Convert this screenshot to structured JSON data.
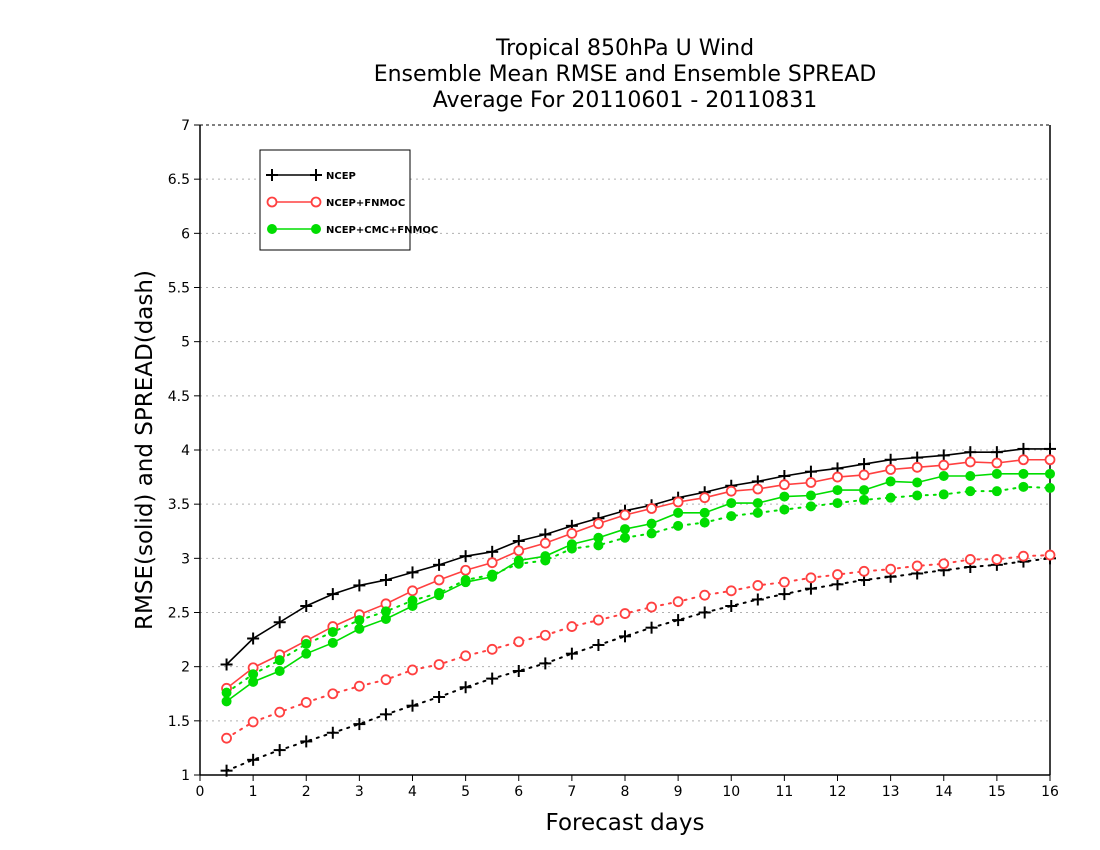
{
  "chart_data": {
    "type": "line",
    "title": [
      "Tropical 850hPa U Wind",
      "Ensemble Mean RMSE and Ensemble SPREAD",
      "Average For 20110601 - 20110831"
    ],
    "xlabel": "Forecast days",
    "ylabel": "RMSE(solid) and SPREAD(dash)",
    "xlim": [
      0,
      16
    ],
    "ylim": [
      1,
      7
    ],
    "xticks": [
      "0",
      "1",
      "2",
      "3",
      "4",
      "5",
      "6",
      "7",
      "8",
      "9",
      "10",
      "11",
      "12",
      "13",
      "14",
      "15",
      "16"
    ],
    "yticks": [
      "1",
      "1.5",
      "2",
      "2.5",
      "3",
      "3.5",
      "4",
      "4.5",
      "5",
      "5.5",
      "6",
      "6.5",
      "7"
    ],
    "grid": "horizontal dotted",
    "legend_position": "top-left",
    "x": [
      0.5,
      1,
      1.5,
      2,
      2.5,
      3,
      3.5,
      4,
      4.5,
      5,
      5.5,
      6,
      6.5,
      7,
      7.5,
      8,
      8.5,
      9,
      9.5,
      10,
      10.5,
      11,
      11.5,
      12,
      12.5,
      13,
      13.5,
      14,
      14.5,
      15,
      15.5,
      16
    ],
    "series": [
      {
        "name": "NCEP",
        "color": "#000000",
        "marker": "plus",
        "rmse": [
          2.02,
          2.26,
          2.41,
          2.56,
          2.67,
          2.75,
          2.8,
          2.87,
          2.94,
          3.02,
          3.06,
          3.16,
          3.22,
          3.3,
          3.37,
          3.44,
          3.49,
          3.56,
          3.61,
          3.67,
          3.71,
          3.76,
          3.8,
          3.83,
          3.87,
          3.91,
          3.93,
          3.95,
          3.98,
          3.98,
          4.01,
          4.01
        ],
        "spread": [
          1.04,
          1.14,
          1.23,
          1.31,
          1.39,
          1.47,
          1.56,
          1.64,
          1.72,
          1.81,
          1.89,
          1.96,
          2.03,
          2.12,
          2.2,
          2.28,
          2.36,
          2.43,
          2.5,
          2.56,
          2.62,
          2.67,
          2.72,
          2.76,
          2.8,
          2.83,
          2.86,
          2.89,
          2.92,
          2.94,
          2.97,
          3.0
        ]
      },
      {
        "name": "NCEP+FNMOC",
        "color": "#ff4040",
        "marker": "open-circle",
        "rmse": [
          1.8,
          1.99,
          2.11,
          2.24,
          2.37,
          2.48,
          2.58,
          2.7,
          2.8,
          2.89,
          2.96,
          3.07,
          3.14,
          3.23,
          3.32,
          3.4,
          3.46,
          3.52,
          3.56,
          3.62,
          3.64,
          3.68,
          3.7,
          3.75,
          3.77,
          3.82,
          3.84,
          3.86,
          3.89,
          3.88,
          3.91,
          3.91
        ],
        "spread": [
          1.34,
          1.49,
          1.58,
          1.67,
          1.75,
          1.82,
          1.88,
          1.97,
          2.02,
          2.1,
          2.16,
          2.23,
          2.29,
          2.37,
          2.43,
          2.49,
          2.55,
          2.6,
          2.66,
          2.7,
          2.75,
          2.78,
          2.82,
          2.85,
          2.88,
          2.9,
          2.93,
          2.95,
          2.99,
          2.99,
          3.02,
          3.03
        ]
      },
      {
        "name": "NCEP+CMC+FNMOC",
        "color": "#00dd00",
        "marker": "filled-circle",
        "rmse": [
          1.68,
          1.86,
          1.96,
          2.12,
          2.22,
          2.35,
          2.44,
          2.56,
          2.66,
          2.78,
          2.83,
          2.98,
          3.02,
          3.13,
          3.19,
          3.27,
          3.32,
          3.42,
          3.42,
          3.51,
          3.51,
          3.57,
          3.58,
          3.63,
          3.63,
          3.71,
          3.7,
          3.76,
          3.76,
          3.78,
          3.78,
          3.78
        ],
        "spread": [
          1.76,
          1.93,
          2.06,
          2.21,
          2.32,
          2.43,
          2.51,
          2.61,
          2.68,
          2.8,
          2.85,
          2.95,
          2.98,
          3.09,
          3.12,
          3.19,
          3.23,
          3.3,
          3.33,
          3.39,
          3.42,
          3.45,
          3.48,
          3.51,
          3.54,
          3.56,
          3.58,
          3.59,
          3.62,
          3.62,
          3.66,
          3.65
        ]
      }
    ]
  }
}
